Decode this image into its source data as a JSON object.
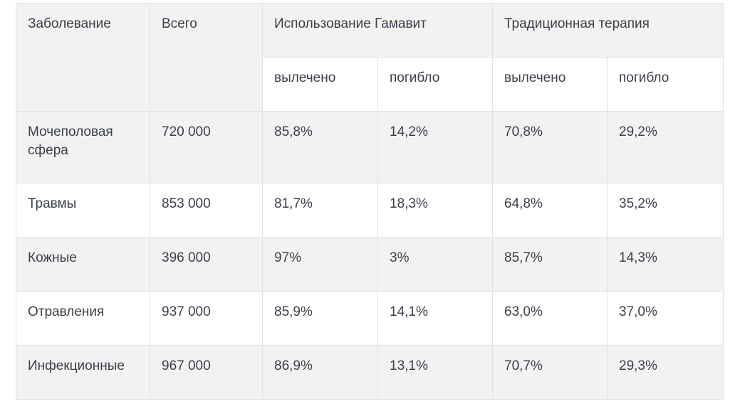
{
  "table": {
    "header": {
      "disease": "Заболевание",
      "total": "Всего",
      "group_gamavit": "Использование Гамавит",
      "group_traditional": "Традиционная терапия",
      "cured": "вылечено",
      "died": "погибло"
    },
    "rows": [
      {
        "disease": "Мочеполовая сфера",
        "total": "720 000",
        "g_cured": "85,8%",
        "g_died": "14,2%",
        "t_cured": "70,8%",
        "t_died": "29,2%"
      },
      {
        "disease": "Травмы",
        "total": "853 000",
        "g_cured": "81,7%",
        "g_died": "18,3%",
        "t_cured": "64,8%",
        "t_died": "35,2%"
      },
      {
        "disease": "Кожные",
        "total": "396 000",
        "g_cured": "97%",
        "g_died": "3%",
        "t_cured": "85,7%",
        "t_died": "14,3%"
      },
      {
        "disease": "Отравления",
        "total": "937 000",
        "g_cured": "85,9%",
        "g_died": "14,1%",
        "t_cured": "63,0%",
        "t_died": "37,0%"
      },
      {
        "disease": "Инфекционные",
        "total": "967 000",
        "g_cured": "86,9%",
        "g_died": "13,1%",
        "t_cured": "70,7%",
        "t_died": "29,3%"
      }
    ]
  }
}
